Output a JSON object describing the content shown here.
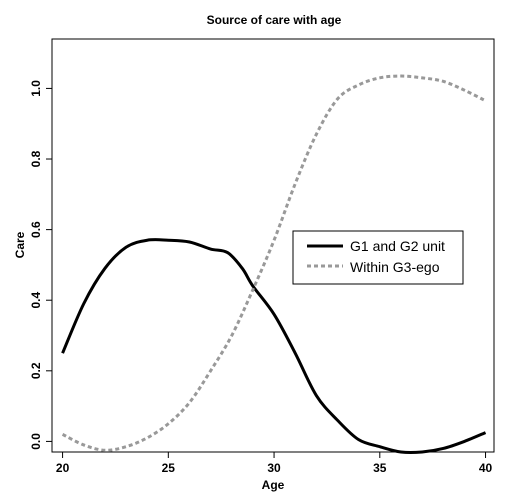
{
  "chart_data": {
    "type": "line",
    "title": "Source of care with age",
    "xlabel": "Age",
    "ylabel": "Care",
    "xlim": [
      19.5,
      40.4
    ],
    "ylim": [
      -0.03,
      1.14
    ],
    "xticks": [
      20,
      25,
      30,
      35,
      40
    ],
    "yticks": [
      0.0,
      0.2,
      0.4,
      0.6,
      0.8,
      1.0
    ],
    "xtick_labels": [
      "20",
      "25",
      "30",
      "35",
      "40"
    ],
    "ytick_labels": [
      "0.0",
      "0.2",
      "0.4",
      "0.6",
      "0.8",
      "1.0"
    ],
    "legend_position": "center-right",
    "grid": false,
    "series": [
      {
        "name": "G1 and G2 unit",
        "color": "#000000",
        "style": "solid",
        "x": [
          20,
          21,
          22,
          23,
          24,
          25,
          26,
          27,
          27.8,
          28.5,
          29,
          30,
          31,
          32,
          33,
          34,
          35,
          36,
          37,
          38,
          39,
          40
        ],
        "y": [
          0.25,
          0.39,
          0.49,
          0.55,
          0.57,
          0.57,
          0.565,
          0.545,
          0.535,
          0.49,
          0.44,
          0.36,
          0.25,
          0.13,
          0.06,
          0.005,
          -0.015,
          -0.03,
          -0.03,
          -0.02,
          0.0,
          0.025
        ]
      },
      {
        "name": "Within G3-ego",
        "color": "#999999",
        "style": "dashed",
        "x": [
          20,
          21,
          22,
          23,
          24,
          25,
          26,
          27,
          28,
          29,
          30,
          31,
          32,
          33,
          34,
          35,
          36,
          37,
          38,
          39,
          40
        ],
        "y": [
          0.02,
          -0.01,
          -0.025,
          -0.015,
          0.01,
          0.05,
          0.11,
          0.2,
          0.3,
          0.43,
          0.57,
          0.73,
          0.87,
          0.97,
          1.01,
          1.03,
          1.035,
          1.03,
          1.02,
          0.995,
          0.965
        ]
      }
    ]
  }
}
